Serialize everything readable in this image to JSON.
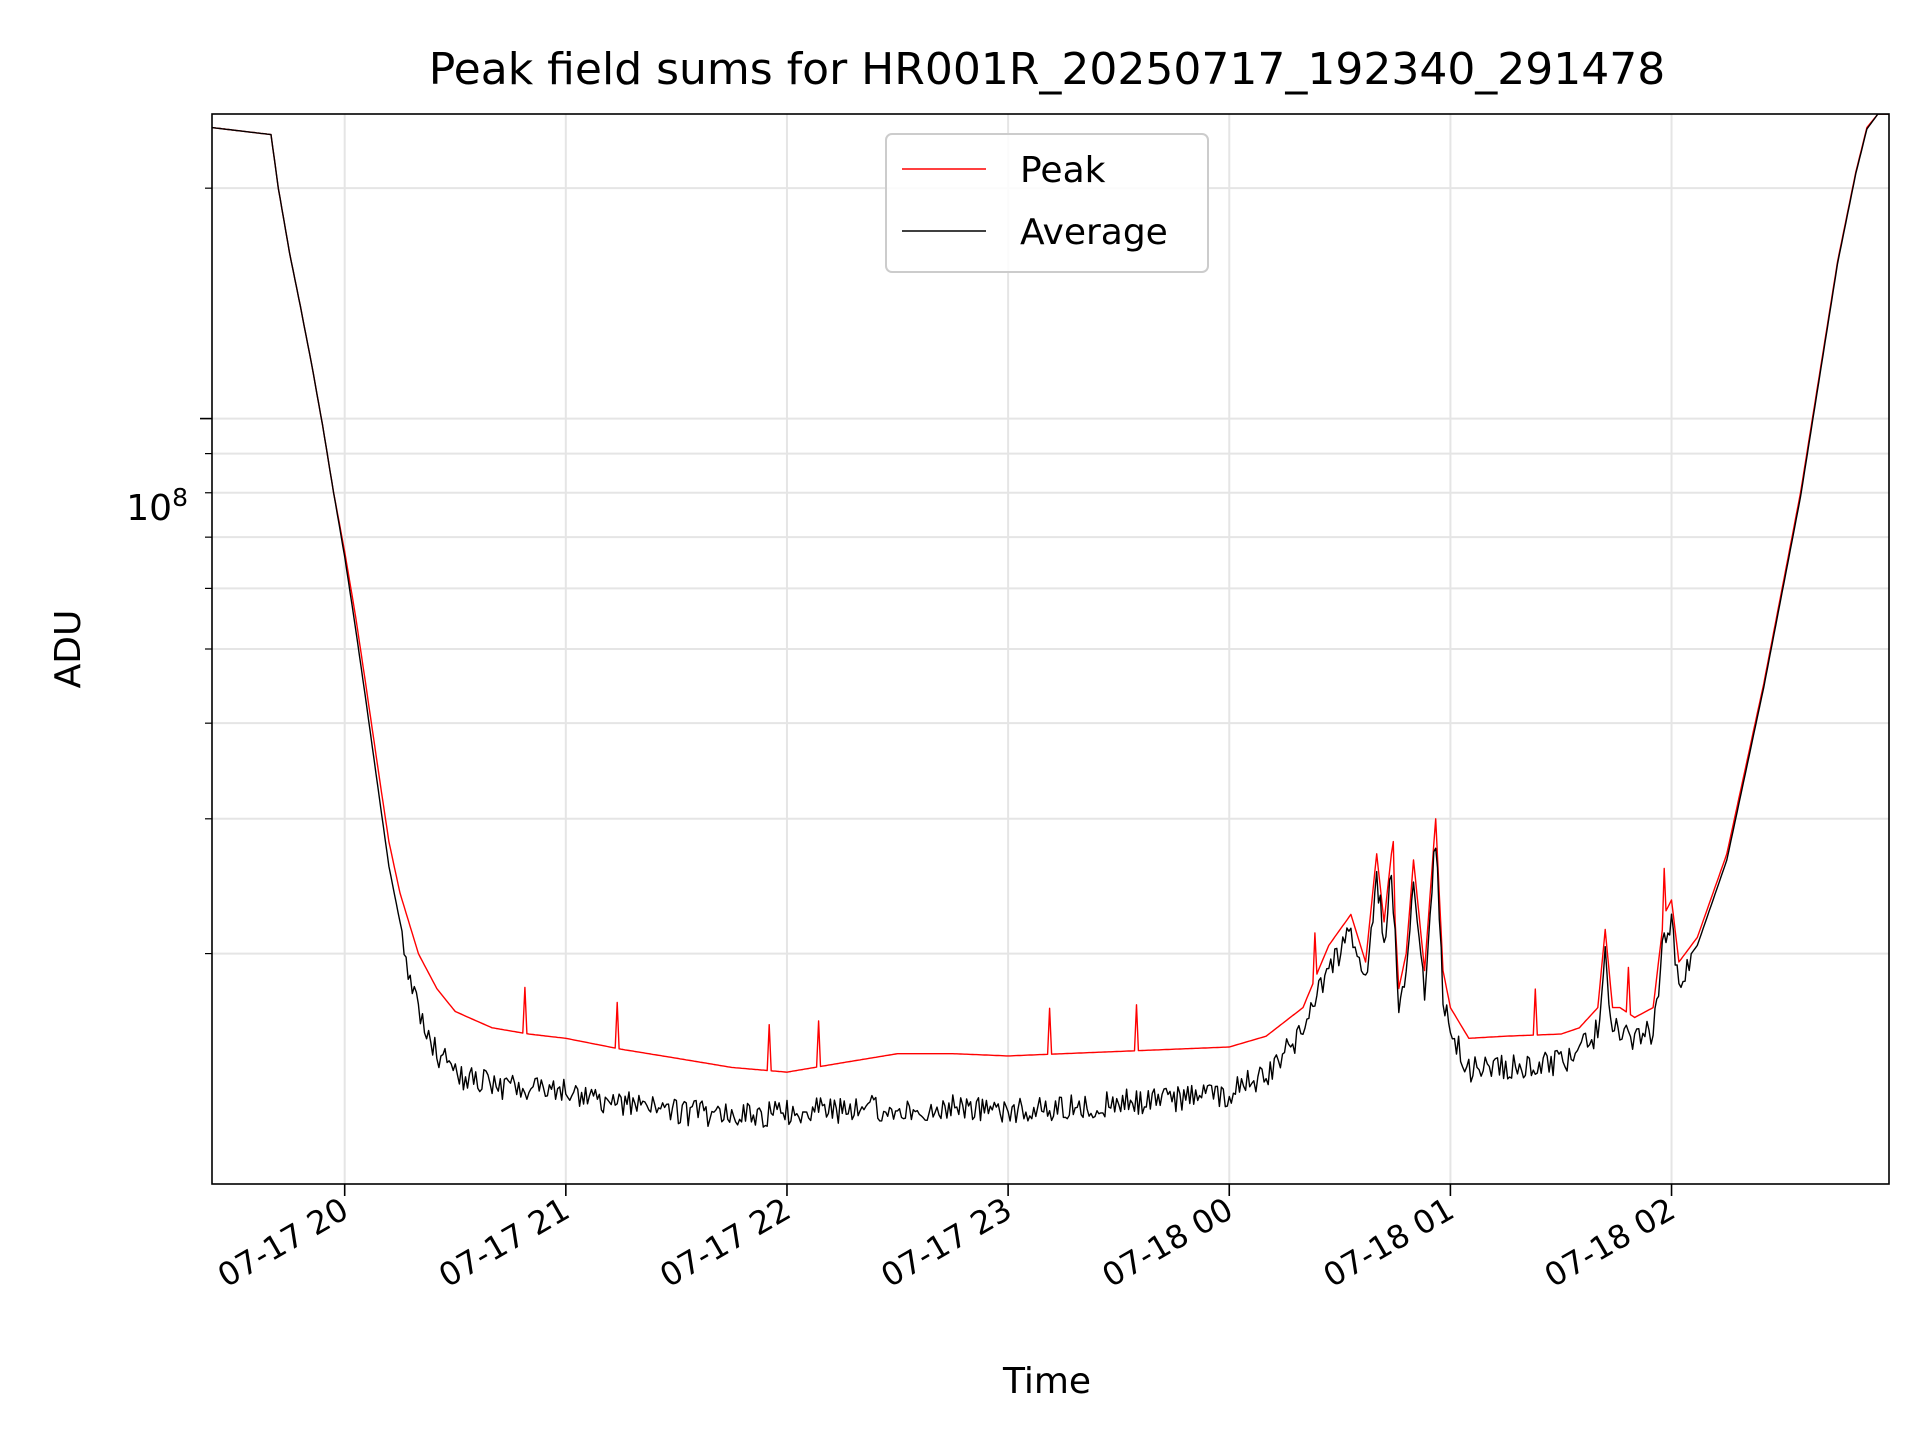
{
  "chart_data": {
    "type": "line",
    "title": "Peak field sums for HR001R_20250717_192340_291478",
    "xlabel": "Time",
    "ylabel": "ADU",
    "y_scale": "log",
    "x_ticks": [
      "07-17 20",
      "07-17 21",
      "07-17 22",
      "07-17 23",
      "07-18 00",
      "07-18 01",
      "07-18 02"
    ],
    "y_tick_major": {
      "base": "10",
      "exponent": "8",
      "value": 100000000
    },
    "xlim": [
      "2025-07-17T19:24",
      "2025-07-18T02:59"
    ],
    "ylim": [
      10000000,
      250000000
    ],
    "grid": true,
    "legend": {
      "placement": "upper center",
      "entries": [
        "Peak",
        "Average"
      ]
    },
    "colors": {
      "Peak": "#ff0000",
      "Average": "#000000",
      "grid": "#e5e5e5"
    },
    "series": [
      {
        "name": "Peak",
        "x": [
          "2025-07-17T19:24",
          "2025-07-17T19:40",
          "2025-07-17T19:42",
          "2025-07-17T19:45",
          "2025-07-17T19:48",
          "2025-07-17T19:51",
          "2025-07-17T19:54",
          "2025-07-17T19:57",
          "2025-07-17T20:00",
          "2025-07-17T20:03",
          "2025-07-17T20:06",
          "2025-07-17T20:09",
          "2025-07-17T20:12",
          "2025-07-17T20:15",
          "2025-07-17T20:20",
          "2025-07-17T20:25",
          "2025-07-17T20:30",
          "2025-07-17T20:40",
          "2025-07-17T20:50",
          "2025-07-17T21:00",
          "2025-07-17T21:15",
          "2025-07-17T21:30",
          "2025-07-17T21:45",
          "2025-07-17T22:00",
          "2025-07-17T22:15",
          "2025-07-17T22:30",
          "2025-07-17T22:45",
          "2025-07-17T23:00",
          "2025-07-17T23:15",
          "2025-07-17T23:30",
          "2025-07-17T23:45",
          "2025-07-18T00:00",
          "2025-07-18T00:10",
          "2025-07-18T00:20",
          "2025-07-18T00:27",
          "2025-07-18T00:33",
          "2025-07-18T00:37",
          "2025-07-18T00:40",
          "2025-07-18T00:42",
          "2025-07-18T00:44",
          "2025-07-18T00:46",
          "2025-07-18T00:48",
          "2025-07-18T00:50",
          "2025-07-18T00:53",
          "2025-07-18T00:56",
          "2025-07-18T00:58",
          "2025-07-18T01:00",
          "2025-07-18T01:05",
          "2025-07-18T01:15",
          "2025-07-18T01:30",
          "2025-07-18T01:35",
          "2025-07-18T01:40",
          "2025-07-18T01:42",
          "2025-07-18T01:44",
          "2025-07-18T01:46",
          "2025-07-18T01:50",
          "2025-07-18T01:55",
          "2025-07-18T01:58",
          "2025-07-18T02:00",
          "2025-07-18T02:02",
          "2025-07-18T02:07",
          "2025-07-18T02:15",
          "2025-07-18T02:25",
          "2025-07-18T02:35",
          "2025-07-18T02:45",
          "2025-07-18T02:50",
          "2025-07-18T02:53",
          "2025-07-18T02:56",
          "2025-07-18T02:59"
        ],
        "y": [
          240000000,
          235000000,
          200000000,
          165000000,
          140000000,
          118000000,
          98000000,
          80000000,
          67000000,
          55000000,
          44000000,
          35000000,
          28000000,
          24000000,
          20000000,
          18000000,
          16800000,
          16000000,
          15700000,
          15500000,
          15000000,
          14600000,
          14200000,
          14000000,
          14400000,
          14800000,
          14800000,
          14700000,
          14800000,
          14900000,
          15000000,
          15100000,
          15600000,
          17000000,
          20500000,
          22500000,
          19500000,
          27000000,
          22000000,
          27000000,
          18000000,
          20000000,
          26500000,
          19000000,
          30000000,
          19000000,
          17000000,
          15500000,
          15600000,
          15700000,
          16000000,
          17000000,
          21500000,
          17000000,
          17000000,
          16500000,
          17000000,
          22500000,
          23500000,
          19500000,
          21000000,
          27000000,
          45000000,
          80000000,
          160000000,
          210000000,
          240000000,
          250000000,
          250000000
        ]
      },
      {
        "name": "Average",
        "x": [
          "2025-07-17T19:24",
          "2025-07-17T19:40",
          "2025-07-17T19:42",
          "2025-07-17T19:45",
          "2025-07-17T19:48",
          "2025-07-17T19:51",
          "2025-07-17T19:54",
          "2025-07-17T19:57",
          "2025-07-17T20:00",
          "2025-07-17T20:03",
          "2025-07-17T20:06",
          "2025-07-17T20:09",
          "2025-07-17T20:12",
          "2025-07-17T20:15",
          "2025-07-17T20:20",
          "2025-07-17T20:25",
          "2025-07-17T20:30",
          "2025-07-17T20:40",
          "2025-07-17T20:50",
          "2025-07-17T21:00",
          "2025-07-17T21:15",
          "2025-07-17T21:30",
          "2025-07-17T21:45",
          "2025-07-17T22:00",
          "2025-07-17T22:15",
          "2025-07-17T22:30",
          "2025-07-17T22:45",
          "2025-07-17T23:00",
          "2025-07-17T23:15",
          "2025-07-17T23:30",
          "2025-07-17T23:45",
          "2025-07-18T00:00",
          "2025-07-18T00:10",
          "2025-07-18T00:20",
          "2025-07-18T00:27",
          "2025-07-18T00:33",
          "2025-07-18T00:37",
          "2025-07-18T00:40",
          "2025-07-18T00:42",
          "2025-07-18T00:44",
          "2025-07-18T00:46",
          "2025-07-18T00:48",
          "2025-07-18T00:50",
          "2025-07-18T00:53",
          "2025-07-18T00:56",
          "2025-07-18T00:58",
          "2025-07-18T01:00",
          "2025-07-18T01:05",
          "2025-07-18T01:15",
          "2025-07-18T01:30",
          "2025-07-18T01:35",
          "2025-07-18T01:40",
          "2025-07-18T01:42",
          "2025-07-18T01:44",
          "2025-07-18T01:46",
          "2025-07-18T01:50",
          "2025-07-18T01:55",
          "2025-07-18T01:58",
          "2025-07-18T02:00",
          "2025-07-18T02:02",
          "2025-07-18T02:07",
          "2025-07-18T02:15",
          "2025-07-18T02:25",
          "2025-07-18T02:35",
          "2025-07-18T02:45",
          "2025-07-18T02:50",
          "2025-07-18T02:53",
          "2025-07-18T02:56",
          "2025-07-18T02:59"
        ],
        "y": [
          240000000,
          235000000,
          200000000,
          165000000,
          140000000,
          118000000,
          98000000,
          80000000,
          66000000,
          53000000,
          42000000,
          33000000,
          26000000,
          22000000,
          17500000,
          15500000,
          14500000,
          14000000,
          13800000,
          13700000,
          13300000,
          12900000,
          12800000,
          12900000,
          13000000,
          13100000,
          13100000,
          13000000,
          13100000,
          13300000,
          13400000,
          13700000,
          14500000,
          16500000,
          20000000,
          22000000,
          19000000,
          26500000,
          21500000,
          26500000,
          17500000,
          19500000,
          26000000,
          18500000,
          29500000,
          18500000,
          16500000,
          14700000,
          14800000,
          15000000,
          15500000,
          16500000,
          21000000,
          16500000,
          16500000,
          16000000,
          16500000,
          22000000,
          23000000,
          19000000,
          20500000,
          26500000,
          44500000,
          79000000,
          159000000,
          209000000,
          239000000,
          250000000,
          250000000
        ]
      }
    ]
  }
}
